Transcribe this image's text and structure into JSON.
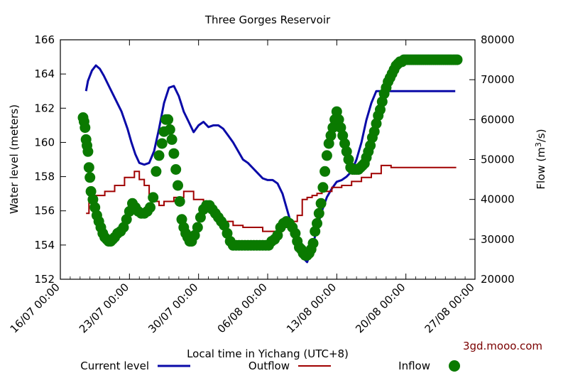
{
  "chart_data": {
    "type": "line",
    "title": "Three Gorges Reservoir",
    "xlabel": "Local time in Yichang (UTC+8)",
    "ylabel": "Water level (meters)",
    "ylabel_right_prefix": "Flow (m",
    "ylabel_right_sup": "3",
    "ylabel_right_suffix": "/s)",
    "x_ticks": [
      "16/07 00:00",
      "23/07 00:00",
      "30/07 00:00",
      "06/08 00:00",
      "13/08 00:00",
      "20/08 00:00",
      "27/08 00:00"
    ],
    "xlim_days": [
      0,
      42
    ],
    "ylim_left": [
      152,
      166
    ],
    "yticks_left": [
      152,
      154,
      156,
      158,
      160,
      162,
      164,
      166
    ],
    "ylim_right": [
      20000,
      80000
    ],
    "yticks_right": [
      20000,
      30000,
      40000,
      50000,
      60000,
      70000,
      80000
    ],
    "grid": false,
    "legend_position": "bottom",
    "watermark": "3gd.mooo.com",
    "colors": {
      "level": "#0a0aa8",
      "outflow": "#a00000",
      "inflow": "#0a7a00"
    },
    "series": [
      {
        "name": "Current level",
        "axis": "left",
        "style": "line",
        "x": [
          2.6,
          2.8,
          3.2,
          3.6,
          4.0,
          4.4,
          5.0,
          5.6,
          6.2,
          6.8,
          7.2,
          7.6,
          8.0,
          8.5,
          9.0,
          9.5,
          10.0,
          10.5,
          11.0,
          11.5,
          12.0,
          12.5,
          13.0,
          13.5,
          14.0,
          14.5,
          15.0,
          15.5,
          16.0,
          16.5,
          17.0,
          17.5,
          18.0,
          18.5,
          19.0,
          19.5,
          20.0,
          20.5,
          21.0,
          21.5,
          22.0,
          22.5,
          23.0,
          23.5,
          24.0,
          24.5,
          25.0,
          25.5,
          26.0,
          26.5,
          27.0,
          27.5,
          28.0,
          28.5,
          29.0,
          29.5,
          30.0,
          30.5,
          31.0,
          31.5,
          32.0,
          32.5,
          33.0,
          33.5,
          34.0,
          34.5,
          35.0,
          35.5,
          36.0,
          36.5,
          37.0,
          37.5,
          38.0,
          38.5,
          39.0,
          39.6,
          40.0
        ],
        "y": [
          163.0,
          163.6,
          164.2,
          164.5,
          164.3,
          163.9,
          163.2,
          162.5,
          161.8,
          160.8,
          160.0,
          159.3,
          158.8,
          158.7,
          158.8,
          159.5,
          160.8,
          162.3,
          163.2,
          163.3,
          162.7,
          161.8,
          161.2,
          160.6,
          161.0,
          161.2,
          160.9,
          161.0,
          161.0,
          160.8,
          160.4,
          160.0,
          159.5,
          159.0,
          158.8,
          158.5,
          158.2,
          157.9,
          157.8,
          157.8,
          157.6,
          157.0,
          156.0,
          155.0,
          154.0,
          153.3,
          153.0,
          153.8,
          155.0,
          156.0,
          156.8,
          157.3,
          157.7,
          157.8,
          158.0,
          158.3,
          159.0,
          160.0,
          161.3,
          162.3,
          163.0,
          163.0,
          163.0,
          163.0,
          163.0,
          163.0,
          163.0,
          163.0,
          163.0,
          163.0,
          163.0,
          163.0,
          163.0,
          163.0,
          163.0,
          163.0,
          163.0
        ]
      },
      {
        "name": "Outflow",
        "axis": "right",
        "style": "step",
        "x": [
          2.6,
          2.9,
          3.5,
          4.5,
          5.5,
          6.5,
          7.5,
          8.0,
          8.5,
          9.0,
          9.5,
          10.0,
          10.5,
          11.5,
          12.5,
          13.5,
          14.5,
          15.5,
          16.5,
          17.5,
          18.5,
          19.5,
          20.5,
          21.5,
          22.5,
          23.5,
          24.0,
          24.5,
          25.0,
          25.5,
          26.0,
          26.5,
          27.5,
          28.5,
          29.5,
          30.5,
          31.5,
          32.5,
          33.5,
          34.5,
          35.5,
          36.5,
          37.5,
          38.5,
          39.5
        ],
        "y": [
          36500,
          40000,
          41000,
          42000,
          43500,
          45500,
          47000,
          45000,
          43500,
          41000,
          39500,
          38500,
          39500,
          40500,
          42000,
          40000,
          38000,
          35500,
          34500,
          33500,
          33000,
          33000,
          32000,
          32000,
          33000,
          34500,
          36000,
          40000,
          40500,
          41000,
          41500,
          42000,
          43000,
          43500,
          44500,
          45500,
          46500,
          48500,
          48000,
          48000,
          48000,
          48000,
          48000,
          48000,
          48000
        ],
        "x_end": 40.1
      },
      {
        "name": "Inflow",
        "axis": "right",
        "style": "markers",
        "x": [
          2.3,
          2.4,
          2.5,
          2.6,
          2.7,
          2.8,
          2.9,
          3.0,
          3.1,
          3.3,
          3.5,
          3.7,
          3.9,
          4.1,
          4.3,
          4.5,
          4.7,
          4.9,
          5.1,
          5.3,
          5.5,
          5.8,
          6.1,
          6.4,
          6.7,
          7.0,
          7.3,
          7.6,
          7.9,
          8.2,
          8.5,
          8.8,
          9.1,
          9.4,
          9.7,
          10.0,
          10.3,
          10.5,
          10.7,
          10.9,
          11.1,
          11.3,
          11.5,
          11.7,
          11.9,
          12.1,
          12.3,
          12.5,
          12.7,
          12.9,
          13.1,
          13.3,
          13.6,
          13.9,
          14.2,
          14.5,
          14.8,
          15.1,
          15.4,
          15.7,
          16.0,
          16.3,
          16.6,
          16.9,
          17.2,
          17.5,
          17.8,
          18.1,
          18.4,
          18.7,
          19.0,
          19.3,
          19.6,
          19.9,
          20.2,
          20.5,
          20.8,
          21.1,
          21.4,
          21.7,
          22.0,
          22.3,
          22.6,
          22.9,
          23.2,
          23.5,
          23.8,
          24.0,
          24.2,
          24.4,
          24.6,
          24.8,
          25.0,
          25.2,
          25.4,
          25.6,
          25.8,
          26.0,
          26.2,
          26.4,
          26.6,
          26.8,
          27.0,
          27.2,
          27.4,
          27.6,
          27.8,
          28.0,
          28.2,
          28.4,
          28.6,
          28.8,
          29.0,
          29.2,
          29.4,
          29.6,
          29.8,
          30.0,
          30.2,
          30.4,
          30.6,
          30.8,
          31.0,
          31.2,
          31.4,
          31.6,
          31.8,
          32.0,
          32.2,
          32.4,
          32.6,
          32.8,
          33.0,
          33.2,
          33.4,
          33.6,
          33.8,
          34.0,
          34.2,
          34.4,
          34.6,
          34.8,
          35.0,
          35.2,
          35.4,
          35.6,
          35.8,
          36.0,
          36.2,
          36.4,
          36.6,
          36.8,
          37.0,
          37.2,
          37.4,
          37.6,
          37.8,
          38.0,
          38.2,
          38.4,
          38.6,
          38.8,
          39.0,
          39.2,
          39.4,
          39.6,
          39.8,
          40.0,
          40.2
        ],
        "y": [
          60500,
          59500,
          58000,
          55000,
          53500,
          52000,
          48000,
          45500,
          42000,
          40000,
          38000,
          36000,
          34500,
          33000,
          31500,
          30500,
          30000,
          29500,
          29500,
          30000,
          30500,
          31500,
          32000,
          33000,
          35000,
          37000,
          39000,
          38000,
          37000,
          36500,
          36500,
          37000,
          38000,
          40500,
          47000,
          51000,
          54000,
          57000,
          60000,
          60000,
          57500,
          55000,
          51500,
          47500,
          43500,
          39500,
          35000,
          33000,
          31500,
          30500,
          29500,
          29500,
          31000,
          33000,
          35500,
          37500,
          38500,
          38500,
          37500,
          36500,
          35500,
          34500,
          33500,
          31500,
          29500,
          28500,
          28500,
          28500,
          28500,
          28500,
          28500,
          28500,
          28500,
          28500,
          28500,
          28500,
          28500,
          28500,
          29500,
          30000,
          31000,
          33000,
          34000,
          34500,
          34000,
          33000,
          31500,
          29500,
          28000,
          27500,
          26500,
          26000,
          26000,
          26500,
          27500,
          29000,
          32000,
          34000,
          36500,
          39000,
          43000,
          47000,
          51000,
          54000,
          56000,
          58000,
          60000,
          62000,
          60000,
          58000,
          56000,
          54000,
          52000,
          50000,
          48000,
          47500,
          47500,
          47500,
          47500,
          48000,
          48500,
          49000,
          50500,
          52000,
          53500,
          55500,
          57000,
          59000,
          61000,
          62500,
          64500,
          66500,
          68000,
          69500,
          70500,
          71500,
          72500,
          73500,
          74000,
          74500,
          74500,
          75000,
          75000,
          75000,
          75000,
          75000,
          75000,
          75000,
          75000,
          75000,
          75000,
          75000,
          75000,
          75000,
          75000,
          75000,
          75000,
          75000,
          75000,
          75000,
          75000,
          75000,
          75000,
          75000,
          75000,
          75000,
          75000,
          75000,
          75000
        ]
      }
    ]
  }
}
